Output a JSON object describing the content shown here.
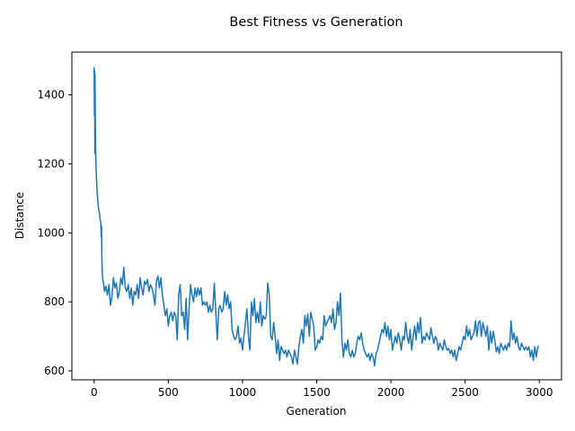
{
  "chart_data": {
    "type": "line",
    "title": "Best Fitness vs Generation",
    "xlabel": "Generation",
    "ylabel": "Distance",
    "xlim": [
      -150,
      3150
    ],
    "ylim": [
      574,
      1524
    ],
    "x_ticks": [
      0,
      500,
      1000,
      1500,
      2000,
      2500,
      3000
    ],
    "y_ticks": [
      600,
      800,
      1000,
      1200,
      1400
    ],
    "grid": false,
    "legend": "none",
    "series": [
      {
        "color": "#1f77b4",
        "points": [
          [
            0,
            1480
          ],
          [
            2,
            1340
          ],
          [
            3,
            1470
          ],
          [
            5,
            1230
          ],
          [
            6,
            1460
          ],
          [
            8,
            1330
          ],
          [
            10,
            1250
          ],
          [
            12,
            1200
          ],
          [
            15,
            1170
          ],
          [
            20,
            1120
          ],
          [
            25,
            1090
          ],
          [
            30,
            1070
          ],
          [
            35,
            1060
          ],
          [
            40,
            1040
          ],
          [
            45,
            1030
          ],
          [
            48,
            990
          ],
          [
            50,
            1020
          ],
          [
            52,
            930
          ],
          [
            55,
            880
          ],
          [
            60,
            860
          ],
          [
            65,
            850
          ],
          [
            70,
            830
          ],
          [
            80,
            845
          ],
          [
            90,
            820
          ],
          [
            100,
            850
          ],
          [
            110,
            790
          ],
          [
            120,
            815
          ],
          [
            130,
            870
          ],
          [
            140,
            840
          ],
          [
            150,
            855
          ],
          [
            160,
            810
          ],
          [
            170,
            830
          ],
          [
            180,
            870
          ],
          [
            190,
            850
          ],
          [
            200,
            900
          ],
          [
            210,
            840
          ],
          [
            220,
            830
          ],
          [
            230,
            850
          ],
          [
            240,
            810
          ],
          [
            250,
            840
          ],
          [
            260,
            790
          ],
          [
            270,
            830
          ],
          [
            280,
            820
          ],
          [
            290,
            850
          ],
          [
            300,
            810
          ],
          [
            310,
            870
          ],
          [
            320,
            840
          ],
          [
            330,
            820
          ],
          [
            340,
            860
          ],
          [
            350,
            850
          ],
          [
            360,
            865
          ],
          [
            370,
            830
          ],
          [
            380,
            850
          ],
          [
            390,
            840
          ],
          [
            400,
            820
          ],
          [
            410,
            790
          ],
          [
            420,
            860
          ],
          [
            430,
            875
          ],
          [
            440,
            840
          ],
          [
            450,
            870
          ],
          [
            460,
            820
          ],
          [
            470,
            790
          ],
          [
            480,
            760
          ],
          [
            490,
            780
          ],
          [
            500,
            730
          ],
          [
            510,
            760
          ],
          [
            520,
            770
          ],
          [
            530,
            745
          ],
          [
            540,
            770
          ],
          [
            550,
            760
          ],
          [
            560,
            690
          ],
          [
            570,
            820
          ],
          [
            580,
            850
          ],
          [
            590,
            760
          ],
          [
            600,
            770
          ],
          [
            610,
            720
          ],
          [
            620,
            810
          ],
          [
            630,
            690
          ],
          [
            640,
            780
          ],
          [
            650,
            850
          ],
          [
            660,
            820
          ],
          [
            670,
            800
          ],
          [
            680,
            840
          ],
          [
            690,
            815
          ],
          [
            700,
            840
          ],
          [
            710,
            820
          ],
          [
            720,
            840
          ],
          [
            730,
            790
          ],
          [
            740,
            800
          ],
          [
            750,
            790
          ],
          [
            760,
            800
          ],
          [
            770,
            770
          ],
          [
            780,
            790
          ],
          [
            790,
            770
          ],
          [
            800,
            780
          ],
          [
            810,
            855
          ],
          [
            820,
            770
          ],
          [
            830,
            690
          ],
          [
            840,
            780
          ],
          [
            850,
            790
          ],
          [
            860,
            770
          ],
          [
            870,
            780
          ],
          [
            880,
            830
          ],
          [
            890,
            790
          ],
          [
            900,
            820
          ],
          [
            910,
            780
          ],
          [
            920,
            800
          ],
          [
            930,
            720
          ],
          [
            940,
            700
          ],
          [
            950,
            690
          ],
          [
            960,
            700
          ],
          [
            970,
            730
          ],
          [
            980,
            680
          ],
          [
            990,
            695
          ],
          [
            1000,
            660
          ],
          [
            1010,
            700
          ],
          [
            1020,
            740
          ],
          [
            1030,
            780
          ],
          [
            1040,
            700
          ],
          [
            1050,
            660
          ],
          [
            1060,
            800
          ],
          [
            1070,
            760
          ],
          [
            1080,
            810
          ],
          [
            1090,
            740
          ],
          [
            1100,
            770
          ],
          [
            1110,
            740
          ],
          [
            1120,
            800
          ],
          [
            1130,
            730
          ],
          [
            1140,
            760
          ],
          [
            1150,
            750
          ],
          [
            1160,
            760
          ],
          [
            1170,
            855
          ],
          [
            1180,
            820
          ],
          [
            1190,
            700
          ],
          [
            1200,
            690
          ],
          [
            1210,
            740
          ],
          [
            1220,
            700
          ],
          [
            1230,
            650
          ],
          [
            1240,
            690
          ],
          [
            1250,
            630
          ],
          [
            1260,
            670
          ],
          [
            1270,
            660
          ],
          [
            1280,
            650
          ],
          [
            1290,
            660
          ],
          [
            1300,
            640
          ],
          [
            1310,
            660
          ],
          [
            1320,
            650
          ],
          [
            1330,
            640
          ],
          [
            1340,
            620
          ],
          [
            1350,
            660
          ],
          [
            1360,
            640
          ],
          [
            1370,
            620
          ],
          [
            1380,
            670
          ],
          [
            1390,
            700
          ],
          [
            1400,
            720
          ],
          [
            1410,
            680
          ],
          [
            1420,
            760
          ],
          [
            1430,
            730
          ],
          [
            1440,
            765
          ],
          [
            1450,
            700
          ],
          [
            1460,
            770
          ],
          [
            1470,
            750
          ],
          [
            1480,
            730
          ],
          [
            1490,
            660
          ],
          [
            1500,
            670
          ],
          [
            1510,
            690
          ],
          [
            1520,
            680
          ],
          [
            1530,
            700
          ],
          [
            1540,
            690
          ],
          [
            1550,
            760
          ],
          [
            1560,
            730
          ],
          [
            1570,
            740
          ],
          [
            1580,
            750
          ],
          [
            1590,
            760
          ],
          [
            1600,
            740
          ],
          [
            1610,
            780
          ],
          [
            1620,
            720
          ],
          [
            1630,
            740
          ],
          [
            1640,
            800
          ],
          [
            1650,
            760
          ],
          [
            1660,
            825
          ],
          [
            1670,
            690
          ],
          [
            1680,
            640
          ],
          [
            1690,
            680
          ],
          [
            1700,
            660
          ],
          [
            1710,
            690
          ],
          [
            1720,
            650
          ],
          [
            1730,
            640
          ],
          [
            1740,
            660
          ],
          [
            1750,
            640
          ],
          [
            1760,
            650
          ],
          [
            1770,
            680
          ],
          [
            1780,
            700
          ],
          [
            1790,
            690
          ],
          [
            1800,
            710
          ],
          [
            1810,
            680
          ],
          [
            1820,
            660
          ],
          [
            1830,
            650
          ],
          [
            1840,
            640
          ],
          [
            1850,
            650
          ],
          [
            1860,
            630
          ],
          [
            1870,
            650
          ],
          [
            1880,
            640
          ],
          [
            1890,
            615
          ],
          [
            1900,
            650
          ],
          [
            1910,
            660
          ],
          [
            1920,
            680
          ],
          [
            1930,
            700
          ],
          [
            1940,
            720
          ],
          [
            1950,
            710
          ],
          [
            1960,
            740
          ],
          [
            1970,
            700
          ],
          [
            1980,
            730
          ],
          [
            1990,
            690
          ],
          [
            2000,
            720
          ],
          [
            2010,
            660
          ],
          [
            2020,
            680
          ],
          [
            2030,
            700
          ],
          [
            2040,
            680
          ],
          [
            2050,
            710
          ],
          [
            2060,
            690
          ],
          [
            2070,
            660
          ],
          [
            2080,
            700
          ],
          [
            2090,
            690
          ],
          [
            2100,
            740
          ],
          [
            2110,
            700
          ],
          [
            2120,
            680
          ],
          [
            2130,
            720
          ],
          [
            2140,
            660
          ],
          [
            2150,
            700
          ],
          [
            2160,
            730
          ],
          [
            2170,
            690
          ],
          [
            2180,
            740
          ],
          [
            2190,
            710
          ],
          [
            2200,
            755
          ],
          [
            2210,
            680
          ],
          [
            2220,
            700
          ],
          [
            2230,
            690
          ],
          [
            2240,
            710
          ],
          [
            2250,
            700
          ],
          [
            2260,
            690
          ],
          [
            2270,
            725
          ],
          [
            2280,
            700
          ],
          [
            2290,
            680
          ],
          [
            2300,
            700
          ],
          [
            2310,
            690
          ],
          [
            2320,
            660
          ],
          [
            2330,
            680
          ],
          [
            2340,
            670
          ],
          [
            2350,
            660
          ],
          [
            2360,
            690
          ],
          [
            2370,
            670
          ],
          [
            2380,
            660
          ],
          [
            2390,
            665
          ],
          [
            2400,
            650
          ],
          [
            2410,
            660
          ],
          [
            2420,
            640
          ],
          [
            2430,
            660
          ],
          [
            2440,
            630
          ],
          [
            2450,
            650
          ],
          [
            2460,
            670
          ],
          [
            2470,
            660
          ],
          [
            2480,
            680
          ],
          [
            2490,
            700
          ],
          [
            2500,
            690
          ],
          [
            2510,
            730
          ],
          [
            2520,
            700
          ],
          [
            2530,
            720
          ],
          [
            2540,
            690
          ],
          [
            2550,
            700
          ],
          [
            2560,
            710
          ],
          [
            2570,
            745
          ],
          [
            2580,
            700
          ],
          [
            2590,
            740
          ],
          [
            2600,
            745
          ],
          [
            2610,
            700
          ],
          [
            2620,
            740
          ],
          [
            2630,
            720
          ],
          [
            2640,
            700
          ],
          [
            2650,
            730
          ],
          [
            2660,
            660
          ],
          [
            2670,
            715
          ],
          [
            2680,
            680
          ],
          [
            2690,
            715
          ],
          [
            2700,
            690
          ],
          [
            2710,
            655
          ],
          [
            2720,
            670
          ],
          [
            2730,
            650
          ],
          [
            2740,
            680
          ],
          [
            2750,
            670
          ],
          [
            2760,
            660
          ],
          [
            2770,
            675
          ],
          [
            2780,
            660
          ],
          [
            2790,
            680
          ],
          [
            2800,
            670
          ],
          [
            2810,
            745
          ],
          [
            2820,
            690
          ],
          [
            2830,
            710
          ],
          [
            2840,
            680
          ],
          [
            2850,
            700
          ],
          [
            2860,
            670
          ],
          [
            2870,
            660
          ],
          [
            2880,
            680
          ],
          [
            2890,
            670
          ],
          [
            2900,
            660
          ],
          [
            2910,
            670
          ],
          [
            2920,
            660
          ],
          [
            2930,
            670
          ],
          [
            2940,
            640
          ],
          [
            2950,
            660
          ],
          [
            2960,
            630
          ],
          [
            2970,
            670
          ],
          [
            2980,
            640
          ],
          [
            2990,
            670
          ],
          [
            3000,
            670
          ]
        ]
      }
    ]
  }
}
